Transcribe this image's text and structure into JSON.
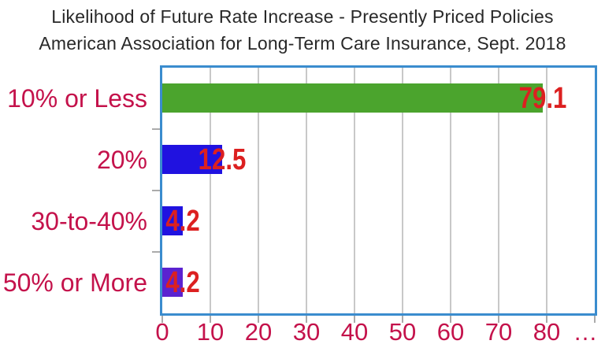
{
  "title": {
    "line1": "Likelihood of Future Rate Increase - Presently Priced Policies",
    "line2": "American Association for Long-Term Care Insurance, Sept. 2018"
  },
  "chart_data": {
    "type": "bar",
    "orientation": "horizontal",
    "title": "Likelihood of Future Rate Increase - Presently Priced Policies",
    "subtitle": "American Association for Long-Term Care Insurance, Sept. 2018",
    "categories": [
      "10% or Less",
      "20%",
      "30-to-40%",
      "50% or More"
    ],
    "values": [
      79.1,
      12.5,
      4.2,
      4.2
    ],
    "value_labels": [
      "79.1",
      "12.5",
      "4.2",
      "4.2"
    ],
    "bar_colors": [
      "#4BA42D",
      "#2012E0",
      "#2012E0",
      "#5B22D0"
    ],
    "x_ticks": [
      0,
      10,
      20,
      30,
      40,
      50,
      60,
      70,
      80
    ],
    "x_overflow_label": "…",
    "xlim": [
      0,
      90
    ],
    "grid": true,
    "legend": "none",
    "xlabel": "",
    "ylabel": ""
  },
  "colors": {
    "title_text": "#282828",
    "category_label": "#C4124B",
    "tick_label": "#C4124B",
    "value_label": "#DC2020",
    "plot_border": "#3A8CCE",
    "gridline": "#C8C8C8",
    "tick_mark": "#ABABAB",
    "background": "#FFFFFF"
  }
}
